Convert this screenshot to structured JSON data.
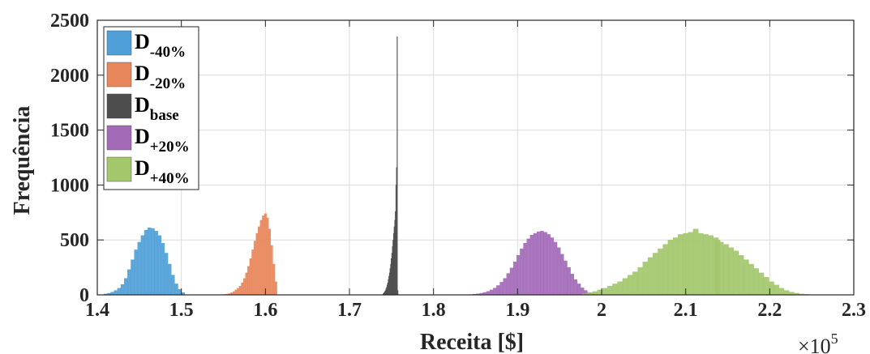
{
  "chart_data": {
    "type": "bar",
    "xlabel": "Receita [$]",
    "ylabel": "Frequência",
    "xlim": [
      140000,
      230000
    ],
    "ylim": [
      0,
      2500
    ],
    "x_ticks": [
      140000,
      150000,
      160000,
      170000,
      180000,
      190000,
      200000,
      210000,
      220000,
      230000
    ],
    "x_tick_labels": [
      "1.4",
      "1.5",
      "1.6",
      "1.7",
      "1.8",
      "1.9",
      "2",
      "2.1",
      "2.2",
      "2.3"
    ],
    "y_ticks": [
      0,
      500,
      1000,
      1500,
      2000,
      2500
    ],
    "y_tick_labels": [
      "0",
      "500",
      "1000",
      "1500",
      "2000",
      "2500"
    ],
    "x_scale_exponent": {
      "base": "×10",
      "exponent": "5"
    },
    "grid": true,
    "legend_position": "top-left",
    "series": [
      {
        "name": "D",
        "subscript": "-40%",
        "color": "#4f9fd8",
        "bin_width": 400,
        "x": [
          141000,
          141400,
          141800,
          142200,
          142600,
          143000,
          143400,
          143800,
          144200,
          144600,
          145000,
          145400,
          145800,
          146200,
          146600,
          147000,
          147400,
          147800,
          148200,
          148600,
          149000,
          149400,
          149800,
          150200
        ],
        "values": [
          8,
          15,
          25,
          40,
          60,
          95,
          150,
          230,
          320,
          410,
          480,
          540,
          590,
          610,
          605,
          580,
          540,
          470,
          380,
          280,
          180,
          100,
          50,
          20
        ]
      },
      {
        "name": "D",
        "subscript": "-20%",
        "color": "#e8875c",
        "bin_width": 250,
        "x": [
          155000,
          155250,
          155500,
          155750,
          156000,
          156250,
          156500,
          156750,
          157000,
          157250,
          157500,
          157750,
          158000,
          158250,
          158500,
          158750,
          159000,
          159250,
          159500,
          159750,
          160000,
          160250,
          160500,
          160750,
          161000,
          161250
        ],
        "values": [
          3,
          5,
          8,
          12,
          20,
          30,
          45,
          60,
          80,
          110,
          150,
          200,
          260,
          330,
          410,
          490,
          560,
          620,
          680,
          720,
          740,
          700,
          600,
          450,
          280,
          120
        ]
      },
      {
        "name": "D",
        "subscript": "base",
        "color": "#4d4d4d",
        "bin_width": 70,
        "x": [
          174000,
          174070,
          174140,
          174210,
          174280,
          174350,
          174420,
          174490,
          174560,
          174630,
          174700,
          174770,
          174840,
          174910,
          174980,
          175050,
          175120,
          175190,
          175260,
          175330,
          175400,
          175470,
          175540,
          175610,
          175680,
          175750
        ],
        "values": [
          10,
          15,
          20,
          30,
          40,
          55,
          70,
          90,
          110,
          140,
          170,
          200,
          240,
          280,
          330,
          380,
          440,
          500,
          560,
          620,
          680,
          760,
          1000,
          1160,
          2350,
          40
        ]
      },
      {
        "name": "D",
        "subscript": "+20%",
        "color": "#a36ab8",
        "bin_width": 400,
        "x": [
          184500,
          184900,
          185300,
          185700,
          186100,
          186500,
          186900,
          187300,
          187700,
          188100,
          188500,
          188900,
          189300,
          189700,
          190100,
          190500,
          190900,
          191300,
          191700,
          192100,
          192500,
          192900,
          193300,
          193700,
          194100,
          194500,
          194900,
          195300,
          195700,
          196100,
          196500,
          196900,
          197300,
          197700,
          198100,
          198500,
          198900,
          199300
        ],
        "values": [
          3,
          6,
          10,
          15,
          22,
          32,
          45,
          62,
          85,
          115,
          150,
          195,
          245,
          300,
          360,
          420,
          470,
          510,
          545,
          560,
          575,
          580,
          570,
          550,
          520,
          480,
          430,
          370,
          310,
          250,
          190,
          140,
          100,
          65,
          40,
          22,
          12,
          5
        ]
      },
      {
        "name": "D",
        "subscript": "+40%",
        "color": "#a3c76b",
        "bin_width": 600,
        "x": [
          198000,
          198600,
          199200,
          199800,
          200400,
          201000,
          201600,
          202200,
          202800,
          203400,
          204000,
          204600,
          205200,
          205800,
          206400,
          207000,
          207600,
          208200,
          208800,
          209400,
          210000,
          210600,
          211200,
          211800,
          212400,
          213000,
          213600,
          213800,
          214200,
          214800,
          215400,
          216000,
          216600,
          217200,
          217800,
          218400,
          219000,
          219600,
          220200,
          220800,
          221400,
          222000,
          222600,
          223200,
          223800,
          224400
        ],
        "values": [
          10,
          20,
          30,
          45,
          60,
          80,
          100,
          120,
          150,
          180,
          210,
          250,
          300,
          340,
          380,
          420,
          460,
          500,
          520,
          550,
          560,
          570,
          600,
          560,
          550,
          540,
          520,
          500,
          480,
          460,
          430,
          400,
          360,
          320,
          280,
          240,
          200,
          160,
          120,
          90,
          60,
          40,
          25,
          15,
          8,
          4
        ]
      }
    ]
  }
}
